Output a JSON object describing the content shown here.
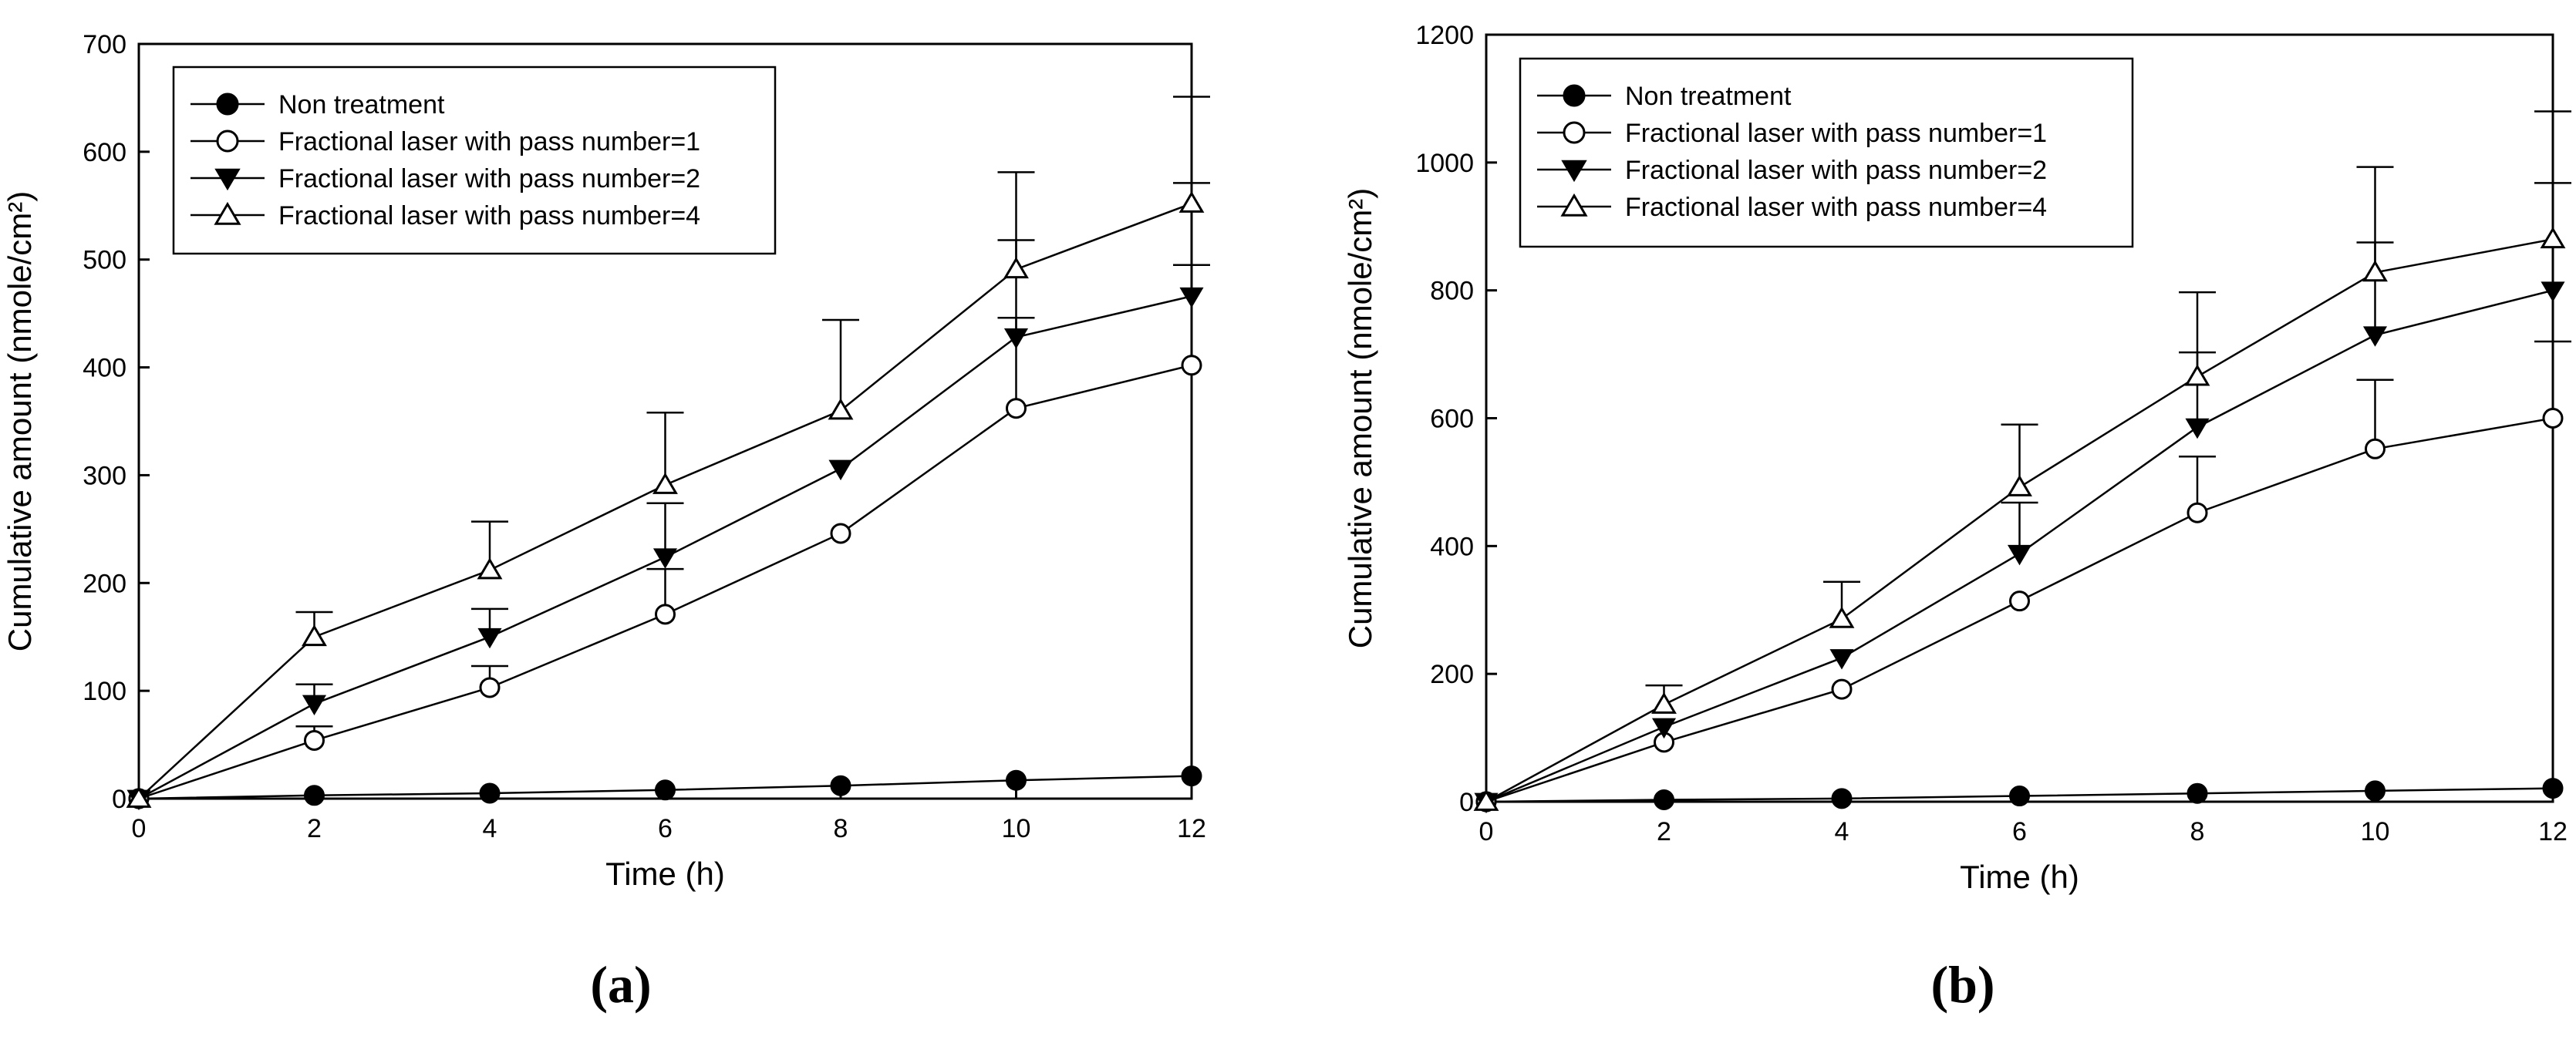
{
  "chart_data": [
    {
      "type": "line",
      "panel_label": "(a)",
      "xlabel": "Time (h)",
      "ylabel": "Cumulative amount (nmole/cm²)",
      "xlim": [
        0,
        12
      ],
      "ylim": [
        0,
        700
      ],
      "xticks": [
        0,
        2,
        4,
        6,
        8,
        10,
        12
      ],
      "yticks": [
        0,
        100,
        200,
        300,
        400,
        500,
        600,
        700
      ],
      "x": [
        0,
        2,
        4,
        6,
        8,
        10,
        12
      ],
      "legend_position": "top-left",
      "series": [
        {
          "name": "Non treatment",
          "marker": "filled-circle",
          "values": [
            0,
            3,
            5,
            8,
            12,
            17,
            21
          ],
          "errors": [
            0,
            0,
            0,
            0,
            0,
            0,
            0
          ]
        },
        {
          "name": "Fractional laser with pass number=1",
          "marker": "open-circle",
          "values": [
            0,
            54,
            103,
            171,
            246,
            362,
            402
          ],
          "errors": [
            0,
            13,
            20,
            42,
            0,
            84,
            93
          ]
        },
        {
          "name": "Fractional laser with pass number=2",
          "marker": "filled-triangle-down",
          "values": [
            0,
            88,
            150,
            224,
            306,
            428,
            466
          ],
          "errors": [
            0,
            18,
            26,
            50,
            0,
            90,
            105
          ]
        },
        {
          "name": "Fractional laser with pass number=4",
          "marker": "open-triangle-up",
          "values": [
            0,
            150,
            212,
            291,
            360,
            491,
            552
          ],
          "errors": [
            0,
            23,
            45,
            67,
            84,
            90,
            99
          ]
        }
      ]
    },
    {
      "type": "line",
      "panel_label": "(b)",
      "xlabel": "Time (h)",
      "ylabel": "Cumulative amount (nmole/cm²)",
      "xlim": [
        0,
        12
      ],
      "ylim": [
        0,
        1200
      ],
      "xticks": [
        0,
        2,
        4,
        6,
        8,
        10,
        12
      ],
      "yticks": [
        0,
        200,
        400,
        600,
        800,
        1000,
        1200
      ],
      "x": [
        0,
        2,
        4,
        6,
        8,
        10,
        12
      ],
      "legend_position": "top-left",
      "series": [
        {
          "name": "Non treatment",
          "marker": "filled-circle",
          "values": [
            0,
            3,
            5,
            9,
            13,
            17,
            21
          ],
          "errors": [
            0,
            0,
            0,
            0,
            0,
            0,
            0
          ]
        },
        {
          "name": "Fractional laser with pass number=1",
          "marker": "open-circle",
          "values": [
            0,
            93,
            176,
            314,
            452,
            552,
            600
          ],
          "errors": [
            0,
            0,
            0,
            0,
            88,
            108,
            120
          ]
        },
        {
          "name": "Fractional laser with pass number=2",
          "marker": "filled-triangle-down",
          "values": [
            0,
            117,
            225,
            388,
            586,
            730,
            800
          ],
          "errors": [
            0,
            0,
            0,
            80,
            117,
            145,
            168
          ]
        },
        {
          "name": "Fractional laser with pass number=4",
          "marker": "open-triangle-up",
          "values": [
            0,
            152,
            286,
            492,
            665,
            828,
            880
          ],
          "errors": [
            0,
            30,
            58,
            98,
            132,
            165,
            200
          ]
        }
      ]
    }
  ]
}
